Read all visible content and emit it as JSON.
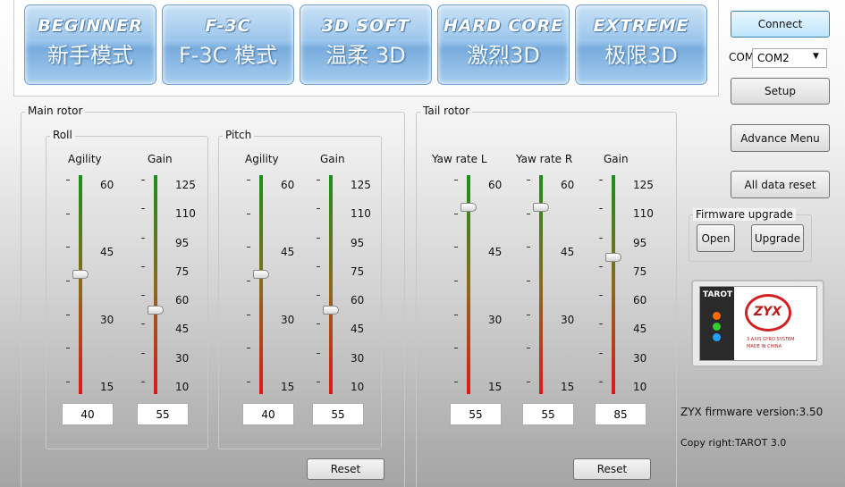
{
  "modes": [
    {
      "title": "BEGINNER",
      "subtitle": "新手模式"
    },
    {
      "title": "F-3C",
      "subtitle": "F-3C 模式"
    },
    {
      "title": "3D SOFT",
      "subtitle": "温柔 3D"
    },
    {
      "title": "HARD CORE",
      "subtitle": "激烈3D"
    },
    {
      "title": "EXTREME",
      "subtitle": "极限3D"
    }
  ],
  "main_rotor": {
    "title": "Main rotor",
    "reset": "Reset",
    "groups": [
      {
        "title": "Roll",
        "sliders": [
          {
            "label": "Agility",
            "ticks": [
              60,
              45,
              30,
              15
            ],
            "value": 40
          },
          {
            "label": "Gain",
            "ticks": [
              125,
              110,
              95,
              75,
              60,
              45,
              30,
              10
            ],
            "value": 55
          }
        ]
      },
      {
        "title": "Pitch",
        "sliders": [
          {
            "label": "Agility",
            "ticks": [
              60,
              45,
              30,
              15
            ],
            "value": 40
          },
          {
            "label": "Gain",
            "ticks": [
              125,
              110,
              95,
              75,
              60,
              45,
              30,
              10
            ],
            "value": 55
          }
        ]
      }
    ]
  },
  "tail_rotor": {
    "title": "Tail rotor",
    "reset": "Reset",
    "sliders": [
      {
        "label": "Yaw rate L",
        "ticks": [
          60,
          45,
          30,
          15
        ],
        "value": 55
      },
      {
        "label": "Yaw rate R",
        "ticks": [
          60,
          45,
          30,
          15
        ],
        "value": 55
      },
      {
        "label": "Gain",
        "ticks": [
          125,
          110,
          95,
          75,
          60,
          45,
          30,
          10
        ],
        "value": 85
      }
    ]
  },
  "sidebar": {
    "connect": "Connect",
    "com_label": "COM",
    "com_value": "COM2",
    "setup": "Setup",
    "advance_menu": "Advance Menu",
    "all_data_reset": "All data reset",
    "firmware_upgrade": {
      "title": "Firmware upgrade",
      "open": "Open",
      "upgrade": "Upgrade"
    },
    "device": {
      "brand": "TAROT",
      "model": "ZYX",
      "caption": "3 AXIS GYRO SYSTEM",
      "origin": "MADE IN CHINA"
    },
    "firmware_version": "ZYX firmware version:3.50",
    "copyright": "Copy right:TAROT 3.0"
  }
}
